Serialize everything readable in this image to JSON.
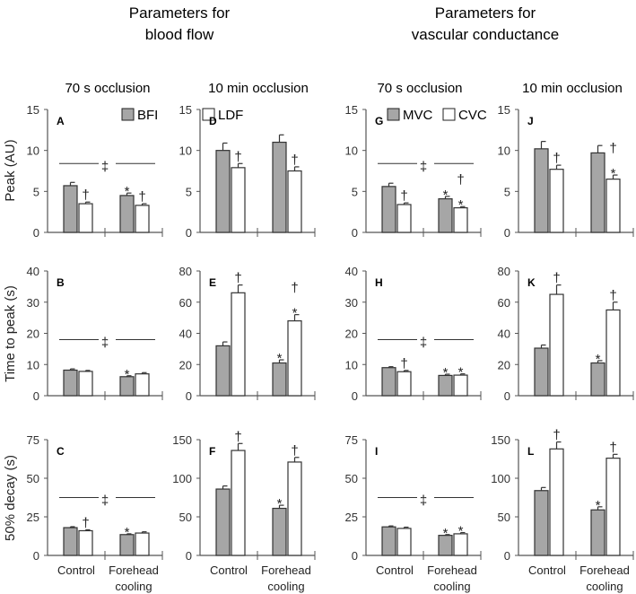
{
  "headers": {
    "left": [
      "Parameters for",
      "blood flow"
    ],
    "right": [
      "Parameters for",
      "vascular conductance"
    ],
    "columns": [
      "70 s occlusion",
      "10 min occlusion",
      "70 s occlusion",
      "10 min occlusion"
    ]
  },
  "legends": {
    "left": [
      "BFI",
      "LDF"
    ],
    "right": [
      "MVC",
      "CVC"
    ]
  },
  "colors": {
    "filled": "#a6a6a6",
    "open": "#ffffff",
    "axis": "#555555"
  },
  "chart_data": {
    "type": "bar",
    "categories": [
      "Control",
      "Forehead cooling"
    ],
    "category_lines": [
      [
        "Control"
      ],
      [
        "Forehead",
        "cooling"
      ]
    ],
    "ylabels": [
      "Peak (AU)",
      "Time to peak (s)",
      "50% decay (s)"
    ],
    "sig_symbol": "‡",
    "panels": [
      {
        "label": "A",
        "row": 0,
        "col": 0,
        "ylim": [
          0,
          15
        ],
        "ticks": [
          0,
          5,
          10,
          15
        ],
        "series": [
          "BFI",
          "LDF"
        ],
        "values": [
          [
            5.7,
            3.5
          ],
          [
            4.5,
            3.3
          ]
        ],
        "errors": [
          [
            0.4,
            0.2
          ],
          [
            0.3,
            0.2
          ]
        ],
        "marks": [
          [
            "",
            "†"
          ],
          [
            "*",
            "†"
          ]
        ],
        "sig_line": 8.4
      },
      {
        "label": "B",
        "row": 1,
        "col": 0,
        "ylim": [
          0,
          40
        ],
        "ticks": [
          0,
          10,
          20,
          30,
          40
        ],
        "series": [
          "BFI",
          "LDF"
        ],
        "values": [
          [
            8.2,
            7.8
          ],
          [
            6.1,
            7.0
          ]
        ],
        "errors": [
          [
            0.4,
            0.3
          ],
          [
            0.3,
            0.4
          ]
        ],
        "marks": [
          [
            "",
            ""
          ],
          [
            "*",
            ""
          ]
        ],
        "sig_line": 18
      },
      {
        "label": "C",
        "row": 2,
        "col": 0,
        "ylim": [
          0,
          75
        ],
        "ticks": [
          0,
          25,
          50,
          75
        ],
        "series": [
          "BFI",
          "LDF"
        ],
        "values": [
          [
            18,
            16
          ],
          [
            13.5,
            14.5
          ]
        ],
        "errors": [
          [
            0.6,
            0.6
          ],
          [
            0.5,
            0.8
          ]
        ],
        "marks": [
          [
            "",
            "†"
          ],
          [
            "*",
            ""
          ]
        ],
        "sig_line": 37.5
      },
      {
        "label": "D",
        "row": 0,
        "col": 1,
        "ylim": [
          0,
          15
        ],
        "ticks": [
          0,
          5,
          10,
          15
        ],
        "series": [
          "BFI",
          "LDF"
        ],
        "values": [
          [
            10.0,
            7.9
          ],
          [
            11.0,
            7.5
          ]
        ],
        "errors": [
          [
            0.9,
            0.5
          ],
          [
            0.9,
            0.5
          ]
        ],
        "marks": [
          [
            "",
            "†"
          ],
          [
            "",
            "†"
          ]
        ],
        "sig_line": null
      },
      {
        "label": "E",
        "row": 1,
        "col": 1,
        "ylim": [
          0,
          80
        ],
        "ticks": [
          0,
          20,
          40,
          60,
          80
        ],
        "series": [
          "BFI",
          "LDF"
        ],
        "values": [
          [
            32,
            66
          ],
          [
            21,
            48
          ]
        ],
        "errors": [
          [
            2.5,
            5
          ],
          [
            2,
            4
          ]
        ],
        "marks": [
          [
            "",
            "†"
          ],
          [
            "*",
            "†*"
          ]
        ],
        "sig_line": null
      },
      {
        "label": "F",
        "row": 2,
        "col": 1,
        "ylim": [
          0,
          150
        ],
        "ticks": [
          0,
          50,
          100,
          150
        ],
        "series": [
          "BFI",
          "LDF"
        ],
        "values": [
          [
            86,
            136
          ],
          [
            61,
            121
          ]
        ],
        "errors": [
          [
            4,
            9
          ],
          [
            4,
            6
          ]
        ],
        "marks": [
          [
            "",
            "†"
          ],
          [
            "*",
            "†"
          ]
        ],
        "sig_line": null
      },
      {
        "label": "G",
        "row": 0,
        "col": 2,
        "ylim": [
          0,
          15
        ],
        "ticks": [
          0,
          5,
          10,
          15
        ],
        "series": [
          "MVC",
          "CVC"
        ],
        "values": [
          [
            5.6,
            3.4
          ],
          [
            4.1,
            3.0
          ]
        ],
        "errors": [
          [
            0.4,
            0.2
          ],
          [
            0.3,
            0.15
          ]
        ],
        "marks": [
          [
            "",
            "†"
          ],
          [
            "*",
            "†*"
          ]
        ],
        "sig_line": 8.4
      },
      {
        "label": "H",
        "row": 1,
        "col": 2,
        "ylim": [
          0,
          40
        ],
        "ticks": [
          0,
          10,
          20,
          30,
          40
        ],
        "series": [
          "MVC",
          "CVC"
        ],
        "values": [
          [
            9.0,
            7.7
          ],
          [
            6.5,
            6.6
          ]
        ],
        "errors": [
          [
            0.3,
            0.4
          ],
          [
            0.4,
            0.4
          ]
        ],
        "marks": [
          [
            "",
            "†"
          ],
          [
            "*",
            "*"
          ]
        ],
        "sig_line": 18
      },
      {
        "label": "I",
        "row": 2,
        "col": 2,
        "ylim": [
          0,
          75
        ],
        "ticks": [
          0,
          25,
          50,
          75
        ],
        "series": [
          "MVC",
          "CVC"
        ],
        "values": [
          [
            18.5,
            17.5
          ],
          [
            13,
            14
          ]
        ],
        "errors": [
          [
            0.6,
            0.8
          ],
          [
            0.5,
            0.8
          ]
        ],
        "marks": [
          [
            "",
            ""
          ],
          [
            "*",
            "*"
          ]
        ],
        "sig_line": 37.5
      },
      {
        "label": "J",
        "row": 0,
        "col": 3,
        "ylim": [
          0,
          15
        ],
        "ticks": [
          0,
          5,
          10,
          15
        ],
        "series": [
          "MVC",
          "CVC"
        ],
        "values": [
          [
            10.2,
            7.7
          ],
          [
            9.7,
            6.5
          ]
        ],
        "errors": [
          [
            0.9,
            0.5
          ],
          [
            0.9,
            0.5
          ]
        ],
        "marks": [
          [
            "",
            "†"
          ],
          [
            "",
            "†*"
          ]
        ],
        "sig_line": null
      },
      {
        "label": "K",
        "row": 1,
        "col": 3,
        "ylim": [
          0,
          80
        ],
        "ticks": [
          0,
          20,
          40,
          60,
          80
        ],
        "series": [
          "MVC",
          "CVC"
        ],
        "values": [
          [
            30.5,
            65
          ],
          [
            21,
            55
          ]
        ],
        "errors": [
          [
            2,
            6
          ],
          [
            1.5,
            5
          ]
        ],
        "marks": [
          [
            "",
            "†"
          ],
          [
            "*",
            "†"
          ]
        ],
        "sig_line": null
      },
      {
        "label": "L",
        "row": 2,
        "col": 3,
        "ylim": [
          0,
          150
        ],
        "ticks": [
          0,
          50,
          100,
          150
        ],
        "series": [
          "MVC",
          "CVC"
        ],
        "values": [
          [
            84,
            138
          ],
          [
            59,
            126
          ]
        ],
        "errors": [
          [
            4,
            9
          ],
          [
            4,
            5
          ]
        ],
        "marks": [
          [
            "",
            "†"
          ],
          [
            "*",
            "†"
          ]
        ],
        "sig_line": null
      }
    ]
  }
}
